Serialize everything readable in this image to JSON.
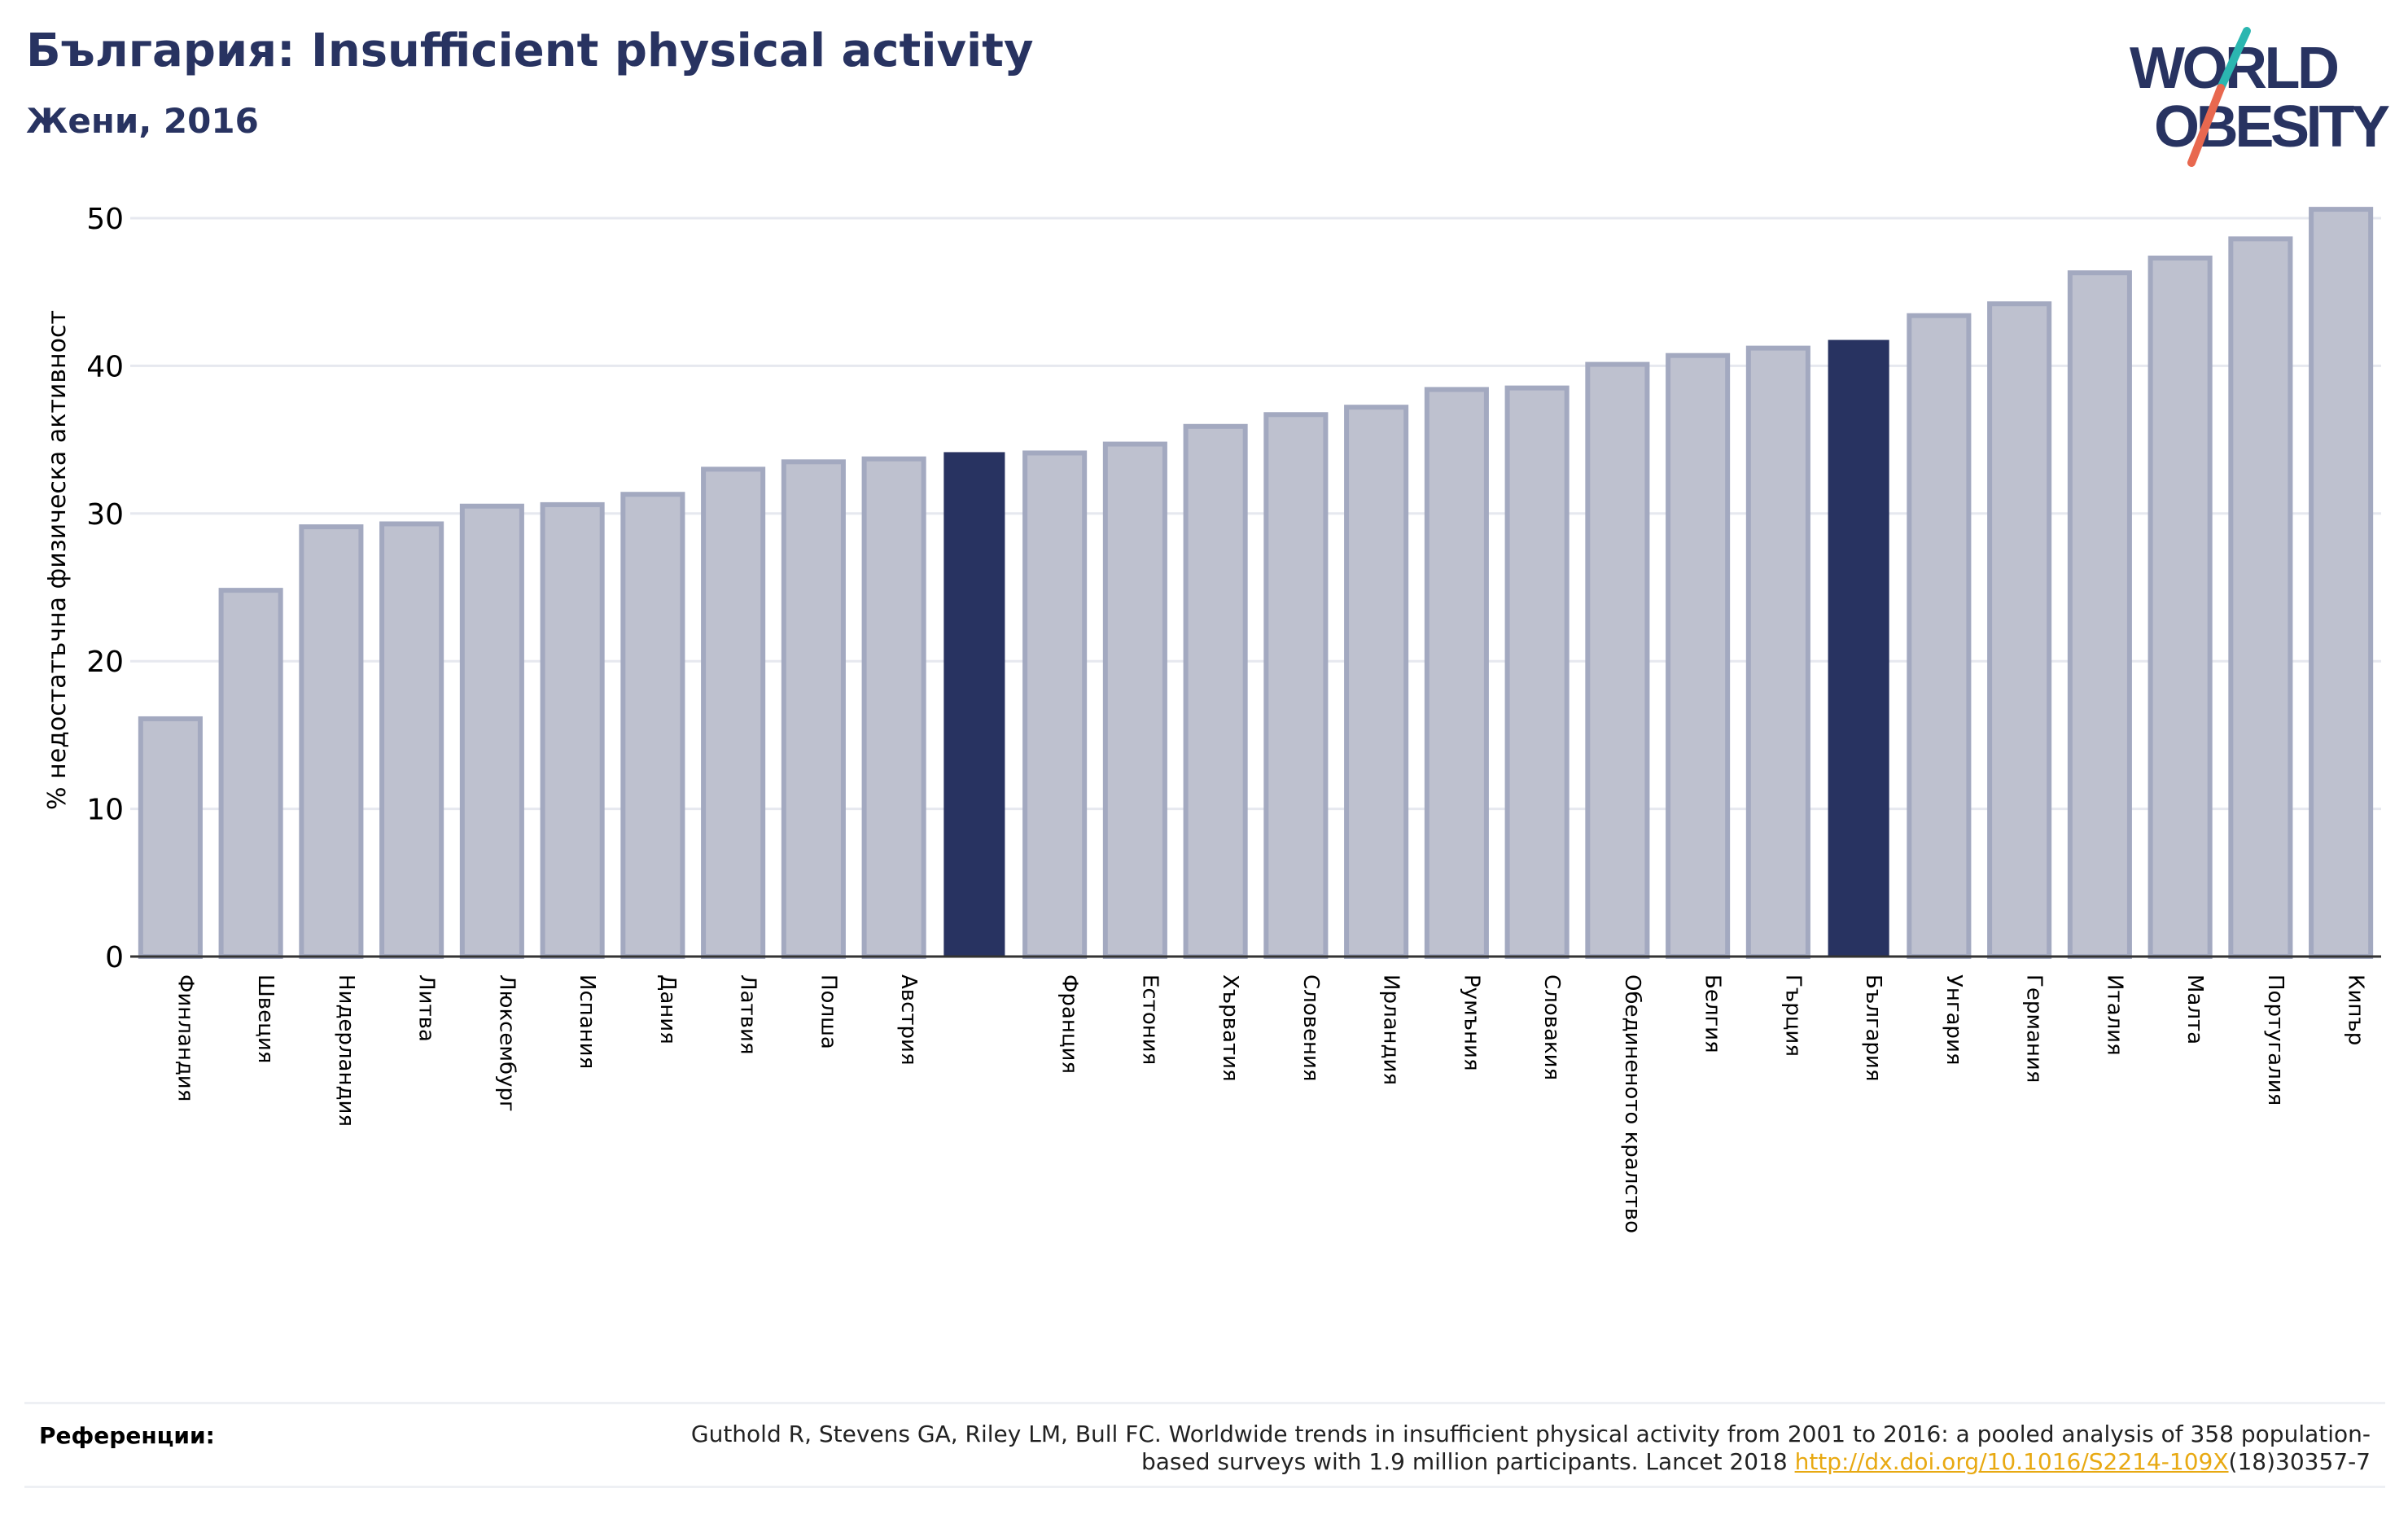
{
  "header": {
    "title": "България: Insufficient physical activity",
    "subtitle": "Жени, 2016"
  },
  "logo": {
    "line1": "WORLD",
    "line2": "OBESITY"
  },
  "chart_data": {
    "type": "bar",
    "ylabel": "% недостатъчна физическа активност",
    "xlabel": "",
    "ylim": [
      0,
      52
    ],
    "yticks": [
      0,
      10,
      20,
      30,
      40,
      50
    ],
    "grid": true,
    "categories": [
      "Финландия",
      "Швеция",
      "Нидерландия",
      "Литва",
      "Люксембург",
      "Испания",
      "Дания",
      "Латвия",
      "Полша",
      "Австрия",
      "",
      "Франция",
      "Естония",
      "Хърватия",
      "Словения",
      "Ирландия",
      "Румъния",
      "Словакия",
      "Обединеното кралство",
      "Белгия",
      "Гърция",
      "България",
      "Унгария",
      "Германия",
      "Италия",
      "Малта",
      "Португалия",
      "Кипър"
    ],
    "values": [
      16.1,
      24.8,
      29.1,
      29.3,
      30.5,
      30.6,
      31.3,
      33.0,
      33.5,
      33.7,
      34.1,
      34.1,
      34.7,
      35.9,
      36.7,
      37.2,
      38.4,
      38.5,
      40.1,
      40.7,
      41.2,
      41.7,
      43.4,
      44.2,
      46.3,
      47.3,
      48.6,
      50.6
    ],
    "highlighted": [
      10,
      21
    ],
    "colors": {
      "bar": "#bec1cf",
      "bar_edge": "#a3a9c0",
      "highlight": "#283361",
      "grid": "#e6e8ef",
      "axis": "#333333"
    }
  },
  "references": {
    "label": "Референции:",
    "text": "Guthold R, Stevens GA, Riley LM, Bull FC. Worldwide trends in insufficient physical activity from 2001 to 2016: a pooled analysis of 358 population-based surveys with 1.9 million participants. Lancet 2018 ",
    "link": "http://dx.doi.org/10.1016/S2214-109X",
    "suffix": "(18)30357-7"
  }
}
